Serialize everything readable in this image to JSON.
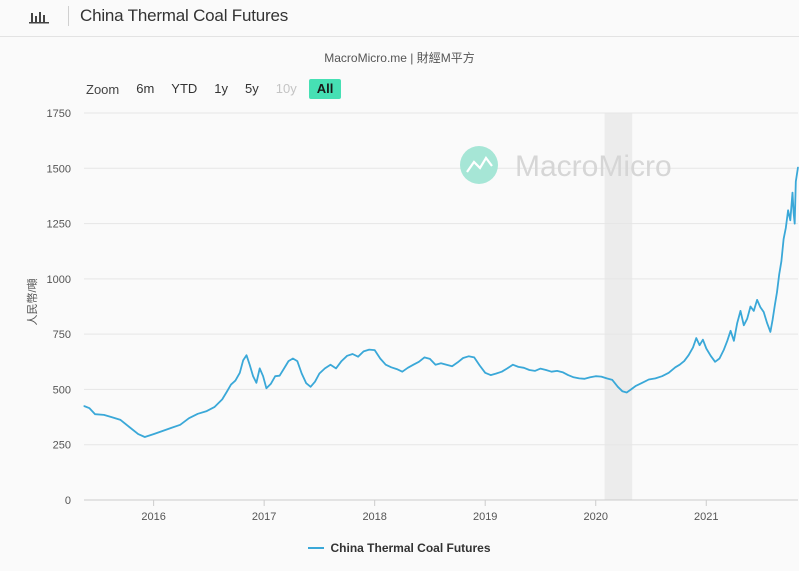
{
  "header": {
    "title": "China Thermal Coal Futures",
    "icon": "bar-chart-icon"
  },
  "source": "MacroMicro.me | 財經M平方",
  "watermark": "MacroMicro",
  "zoom": {
    "label": "Zoom",
    "options": [
      "6m",
      "YTD",
      "1y",
      "5y",
      "10y",
      "All"
    ],
    "selected": "All",
    "disabled": [
      "10y"
    ]
  },
  "colors": {
    "line": "#3aa8d8",
    "accent": "#46e0b4",
    "recession": "#ececec"
  },
  "chart_data": {
    "type": "line",
    "title": "",
    "xlabel": "",
    "ylabel": "人民幣/噸",
    "ylim": [
      0,
      1750
    ],
    "yticks": [
      0,
      250,
      500,
      750,
      1000,
      1250,
      1500,
      1750
    ],
    "xticks": [
      "2016",
      "2017",
      "2018",
      "2019",
      "2020",
      "2021"
    ],
    "x_range": [
      2015.37,
      2021.83
    ],
    "grid": true,
    "legend_position": "bottom",
    "shaded_period": [
      2020.08,
      2020.33
    ],
    "series": [
      {
        "name": "China Thermal Coal Futures",
        "points": [
          [
            2015.37,
            425
          ],
          [
            2015.42,
            415
          ],
          [
            2015.47,
            388
          ],
          [
            2015.55,
            385
          ],
          [
            2015.62,
            375
          ],
          [
            2015.7,
            362
          ],
          [
            2015.78,
            330
          ],
          [
            2015.86,
            298
          ],
          [
            2015.92,
            285
          ],
          [
            2016.0,
            298
          ],
          [
            2016.08,
            312
          ],
          [
            2016.16,
            326
          ],
          [
            2016.24,
            340
          ],
          [
            2016.32,
            370
          ],
          [
            2016.4,
            390
          ],
          [
            2016.48,
            402
          ],
          [
            2016.55,
            420
          ],
          [
            2016.62,
            455
          ],
          [
            2016.66,
            488
          ],
          [
            2016.7,
            522
          ],
          [
            2016.74,
            540
          ],
          [
            2016.78,
            575
          ],
          [
            2016.81,
            632
          ],
          [
            2016.84,
            655
          ],
          [
            2016.87,
            610
          ],
          [
            2016.9,
            560
          ],
          [
            2016.93,
            530
          ],
          [
            2016.96,
            595
          ],
          [
            2016.99,
            560
          ],
          [
            2017.02,
            505
          ],
          [
            2017.06,
            525
          ],
          [
            2017.1,
            560
          ],
          [
            2017.14,
            562
          ],
          [
            2017.18,
            595
          ],
          [
            2017.22,
            628
          ],
          [
            2017.26,
            640
          ],
          [
            2017.3,
            628
          ],
          [
            2017.34,
            572
          ],
          [
            2017.38,
            528
          ],
          [
            2017.42,
            512
          ],
          [
            2017.46,
            535
          ],
          [
            2017.5,
            572
          ],
          [
            2017.55,
            595
          ],
          [
            2017.6,
            612
          ],
          [
            2017.65,
            595
          ],
          [
            2017.7,
            628
          ],
          [
            2017.75,
            652
          ],
          [
            2017.8,
            660
          ],
          [
            2017.85,
            648
          ],
          [
            2017.9,
            672
          ],
          [
            2017.95,
            680
          ],
          [
            2018.0,
            678
          ],
          [
            2018.05,
            640
          ],
          [
            2018.1,
            612
          ],
          [
            2018.15,
            600
          ],
          [
            2018.2,
            592
          ],
          [
            2018.25,
            580
          ],
          [
            2018.3,
            598
          ],
          [
            2018.35,
            612
          ],
          [
            2018.4,
            625
          ],
          [
            2018.45,
            645
          ],
          [
            2018.5,
            638
          ],
          [
            2018.55,
            612
          ],
          [
            2018.6,
            618
          ],
          [
            2018.65,
            612
          ],
          [
            2018.7,
            605
          ],
          [
            2018.75,
            622
          ],
          [
            2018.8,
            642
          ],
          [
            2018.85,
            650
          ],
          [
            2018.9,
            645
          ],
          [
            2018.95,
            608
          ],
          [
            2019.0,
            575
          ],
          [
            2019.05,
            565
          ],
          [
            2019.1,
            572
          ],
          [
            2019.15,
            580
          ],
          [
            2019.2,
            595
          ],
          [
            2019.25,
            612
          ],
          [
            2019.3,
            602
          ],
          [
            2019.35,
            598
          ],
          [
            2019.4,
            588
          ],
          [
            2019.45,
            584
          ],
          [
            2019.5,
            594
          ],
          [
            2019.55,
            588
          ],
          [
            2019.6,
            580
          ],
          [
            2019.65,
            584
          ],
          [
            2019.7,
            578
          ],
          [
            2019.75,
            565
          ],
          [
            2019.8,
            555
          ],
          [
            2019.85,
            550
          ],
          [
            2019.9,
            548
          ],
          [
            2019.95,
            555
          ],
          [
            2020.0,
            560
          ],
          [
            2020.05,
            558
          ],
          [
            2020.1,
            550
          ],
          [
            2020.15,
            543
          ],
          [
            2020.2,
            512
          ],
          [
            2020.24,
            492
          ],
          [
            2020.28,
            486
          ],
          [
            2020.32,
            500
          ],
          [
            2020.36,
            515
          ],
          [
            2020.42,
            530
          ],
          [
            2020.48,
            545
          ],
          [
            2020.54,
            550
          ],
          [
            2020.6,
            560
          ],
          [
            2020.66,
            575
          ],
          [
            2020.72,
            600
          ],
          [
            2020.76,
            612
          ],
          [
            2020.8,
            628
          ],
          [
            2020.84,
            655
          ],
          [
            2020.88,
            690
          ],
          [
            2020.91,
            732
          ],
          [
            2020.94,
            700
          ],
          [
            2020.97,
            725
          ],
          [
            2021.0,
            685
          ],
          [
            2021.04,
            652
          ],
          [
            2021.08,
            625
          ],
          [
            2021.12,
            640
          ],
          [
            2021.16,
            680
          ],
          [
            2021.19,
            720
          ],
          [
            2021.22,
            765
          ],
          [
            2021.25,
            720
          ],
          [
            2021.28,
            800
          ],
          [
            2021.31,
            855
          ],
          [
            2021.34,
            790
          ],
          [
            2021.37,
            820
          ],
          [
            2021.4,
            875
          ],
          [
            2021.43,
            855
          ],
          [
            2021.46,
            905
          ],
          [
            2021.49,
            872
          ],
          [
            2021.52,
            850
          ],
          [
            2021.55,
            800
          ],
          [
            2021.58,
            760
          ],
          [
            2021.6,
            815
          ],
          [
            2021.62,
            880
          ],
          [
            2021.64,
            940
          ],
          [
            2021.66,
            1020
          ],
          [
            2021.68,
            1080
          ],
          [
            2021.7,
            1180
          ],
          [
            2021.72,
            1230
          ],
          [
            2021.74,
            1310
          ],
          [
            2021.76,
            1265
          ],
          [
            2021.78,
            1390
          ],
          [
            2021.79,
            1300
          ],
          [
            2021.8,
            1250
          ],
          [
            2021.81,
            1440
          ],
          [
            2021.83,
            1505
          ]
        ]
      }
    ]
  }
}
